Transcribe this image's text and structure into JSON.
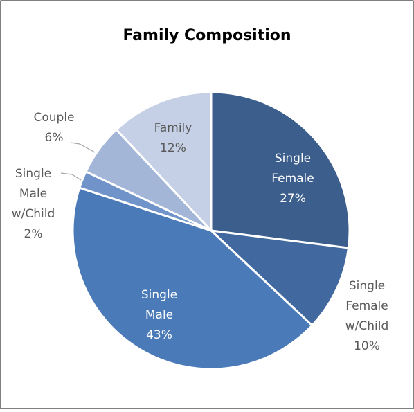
{
  "chart_data": {
    "type": "pie",
    "title": "Family Composition",
    "categories": [
      "Single Female",
      "Single Female w/Child",
      "Single Male",
      "Single Male w/Child",
      "Couple",
      "Family"
    ],
    "values": [
      27,
      10,
      43,
      2,
      6,
      12
    ],
    "value_labels": [
      "27%",
      "10%",
      "43%",
      "2%",
      "6%",
      "12%"
    ],
    "colors": [
      "#3b5e8c",
      "#41699f",
      "#4a7ab7",
      "#7094c9",
      "#a3b6d8",
      "#c5d0e6"
    ]
  }
}
